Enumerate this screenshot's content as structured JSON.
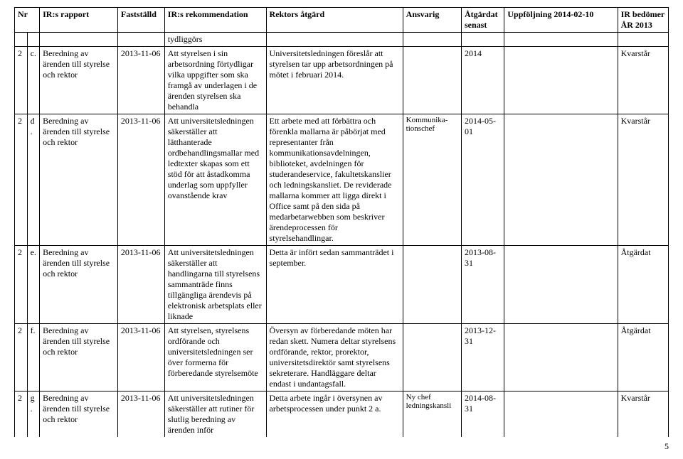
{
  "headers": {
    "nr": "Nr",
    "rapport": "IR:s rapport",
    "fast": "Fastställd",
    "rekom": "IR:s rekommendation",
    "rektor": "Rektors åtgärd",
    "ansv": "Ansvarig",
    "atg": "Åtgärdat senast",
    "uppf": "Uppföljning 2014-02-10",
    "bedom": "IR bedömer ÅR 2013"
  },
  "continuation": {
    "rekom": "tydliggörs"
  },
  "rows": [
    {
      "n1": "2",
      "n2": "c.",
      "rapport": "Beredning av ärenden till styrelse och rektor",
      "fast": "2013-11-06",
      "rekom": "Att styrelsen i sin arbetsordning förtydligar vilka uppgifter som ska framgå av underlagen i de ärenden styrelsen ska behandla",
      "rektor": "Universitetsledningen föreslår att styrelsen tar upp arbetsordningen på mötet i februari 2014.",
      "ansv": "",
      "atg": "2014",
      "uppf": "",
      "bedom": "Kvarstår"
    },
    {
      "n1": "2",
      "n2": "d.",
      "rapport": "Beredning av ärenden till styrelse och rektor",
      "fast": "2013-11-06",
      "rekom": "Att universitetsledningen säkerställer att lätthanterade ordbehandlingsmallar med ledtexter skapas som ett stöd för att åstadkomma underlag som uppfyller ovanstående krav",
      "rektor": "Ett arbete med att förbättra och förenkla mallarna är påbörjat med representanter från kommunikationsavdelningen, biblioteket, avdelningen för studerandeservice, fakultetskanslier och ledningskansliet. De reviderade mallarna kommer att ligga direkt i Office samt på den sida på medarbetarwebben som beskriver ärendeprocessen för styrelsehandlingar.",
      "ansv": "Kommunika-tionschef",
      "atg": "2014-05-01",
      "uppf": "",
      "bedom": "Kvarstår"
    },
    {
      "n1": "2",
      "n2": "e.",
      "rapport": "Beredning av ärenden till styrelse och rektor",
      "fast": "2013-11-06",
      "rekom": "Att universitetsledningen säkerställer att handlingarna till styrelsens sammanträde finns tillgängliga ärendevis på elektronisk arbetsplats eller liknade",
      "rektor": "Detta är infört sedan sammanträdet i september.",
      "ansv": "",
      "atg": "2013-08-31",
      "uppf": "",
      "bedom": "Åtgärdat"
    },
    {
      "n1": "2",
      "n2": "f.",
      "rapport": "Beredning av ärenden till styrelse och rektor",
      "fast": "2013-11-06",
      "rekom": "Att styrelsen, styrelsens ordförande och universitetsledningen ser över formerna för förberedande styrelsemöte",
      "rektor": "Översyn av förberedande möten har redan skett. Numera deltar styrelsens ordförande, rektor, prorektor, universitetsdirektör samt styrelsens sekreterare. Handläggare deltar endast i undantagsfall.",
      "ansv": "",
      "atg": "2013-12-31",
      "uppf": "",
      "bedom": "Åtgärdat"
    },
    {
      "n1": "2",
      "n2": "g.",
      "rapport": "Beredning av ärenden till styrelse och rektor",
      "fast": "2013-11-06",
      "rekom": "Att universitetsledningen säkerställer att rutiner för slutlig beredning av ärenden inför",
      "rektor": "Detta arbete ingår i översynen av arbetsprocessen under punkt 2 a.",
      "ansv": "Ny chef ledningskansli",
      "atg": "2014-08-31",
      "uppf": "",
      "bedom": "Kvarstår"
    }
  ],
  "pageNumber": "5"
}
